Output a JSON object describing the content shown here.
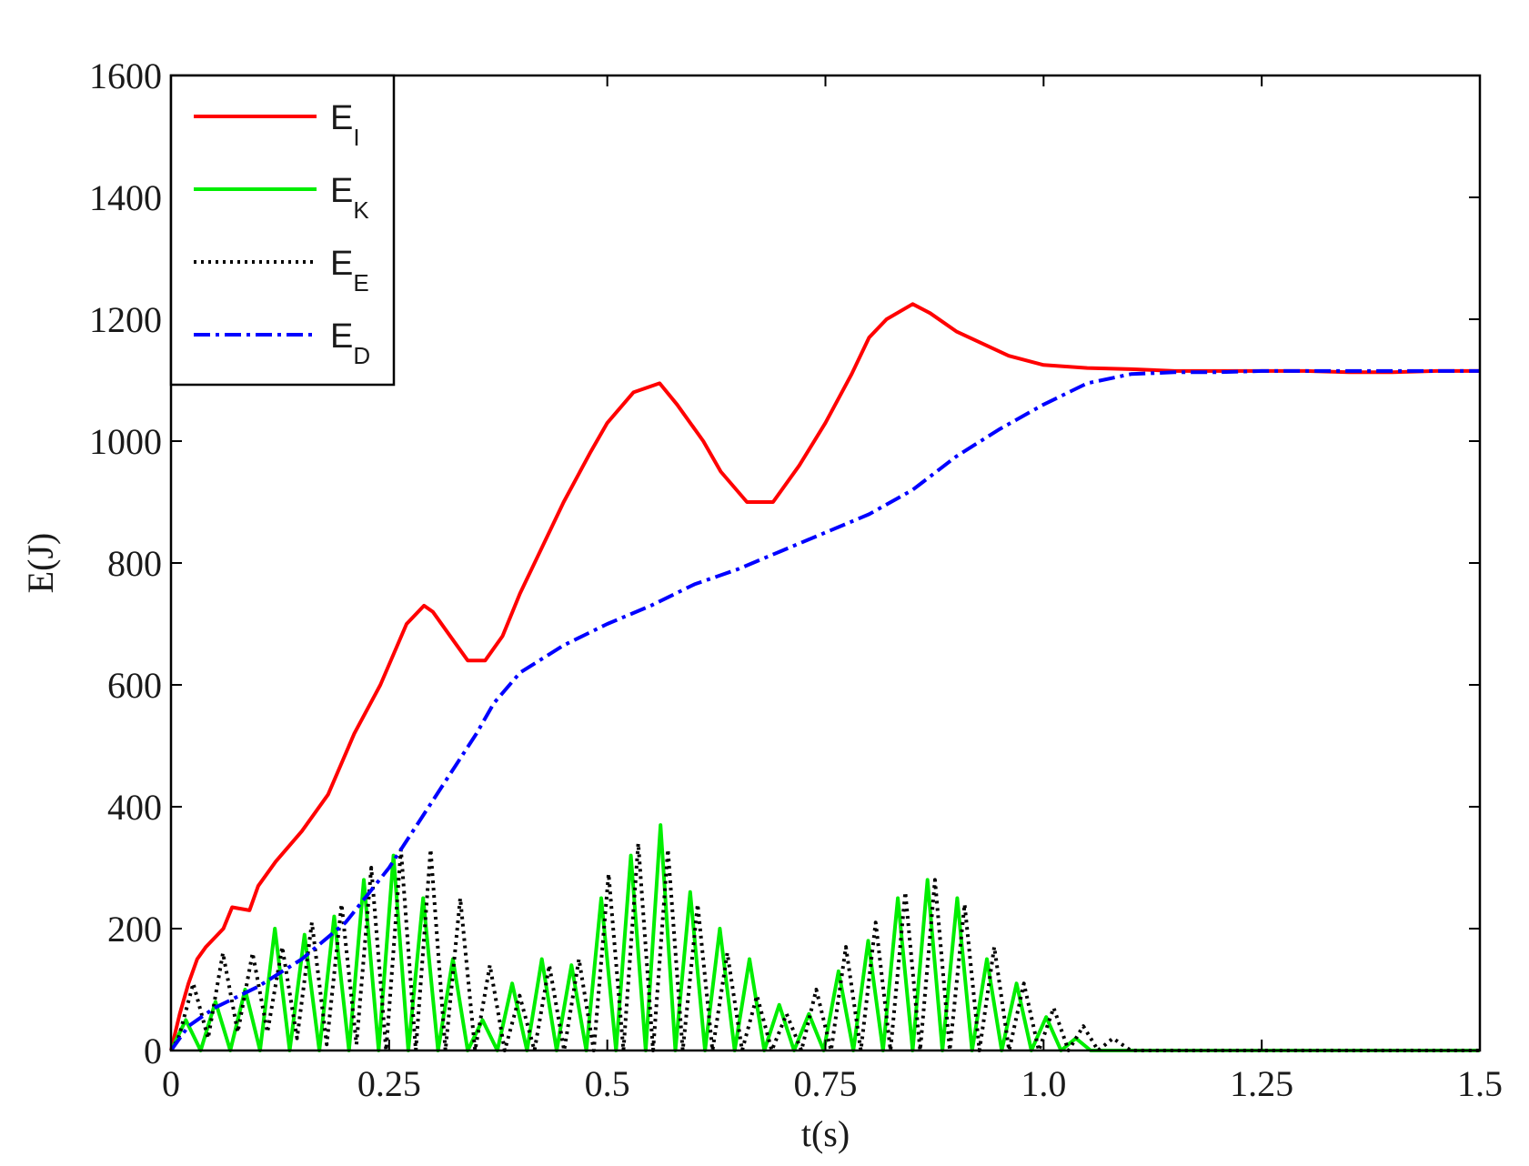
{
  "chart_data": {
    "type": "line",
    "title": "",
    "xlabel": "t(s)",
    "ylabel": "E(J)",
    "xlim": [
      0,
      1.5
    ],
    "ylim": [
      0,
      1600
    ],
    "x_ticks": [
      0,
      0.25,
      0.5,
      0.75,
      1.0,
      1.25,
      1.5
    ],
    "x_tick_labels": [
      "0",
      "0.25",
      "0.5",
      "0.75",
      "1.0",
      "1.25",
      "1.5"
    ],
    "y_ticks": [
      0,
      200,
      400,
      600,
      800,
      1000,
      1200,
      1400,
      1600
    ],
    "y_tick_labels": [
      "0",
      "200",
      "400",
      "600",
      "800",
      "1000",
      "1200",
      "1400",
      "1600"
    ],
    "grid": false,
    "legend_position": "top-left",
    "series": [
      {
        "name": "E_I",
        "label_main": "E",
        "label_sub": "I",
        "color": "#ff0000",
        "style": "solid",
        "x": [
          0,
          0.01,
          0.02,
          0.03,
          0.04,
          0.06,
          0.07,
          0.09,
          0.1,
          0.12,
          0.15,
          0.18,
          0.21,
          0.24,
          0.27,
          0.29,
          0.3,
          0.32,
          0.34,
          0.36,
          0.38,
          0.4,
          0.42,
          0.45,
          0.48,
          0.5,
          0.53,
          0.56,
          0.58,
          0.61,
          0.63,
          0.66,
          0.69,
          0.72,
          0.75,
          0.78,
          0.8,
          0.82,
          0.85,
          0.87,
          0.9,
          0.93,
          0.96,
          1.0,
          1.05,
          1.1,
          1.15,
          1.2,
          1.25,
          1.3,
          1.35,
          1.4,
          1.45,
          1.5
        ],
        "y": [
          0,
          60,
          110,
          150,
          170,
          200,
          235,
          230,
          270,
          310,
          360,
          420,
          520,
          600,
          700,
          730,
          720,
          680,
          640,
          640,
          680,
          750,
          810,
          900,
          980,
          1030,
          1080,
          1095,
          1060,
          1000,
          950,
          900,
          900,
          960,
          1030,
          1110,
          1170,
          1200,
          1225,
          1210,
          1180,
          1160,
          1140,
          1125,
          1120,
          1118,
          1115,
          1115,
          1115,
          1115,
          1113,
          1113,
          1115,
          1115
        ]
      },
      {
        "name": "E_K",
        "label_main": "E",
        "label_sub": "K",
        "color": "#00ee00",
        "style": "solid",
        "x": [
          0,
          0.017,
          0.034,
          0.051,
          0.068,
          0.085,
          0.102,
          0.119,
          0.136,
          0.153,
          0.17,
          0.187,
          0.204,
          0.221,
          0.238,
          0.255,
          0.272,
          0.289,
          0.306,
          0.323,
          0.34,
          0.357,
          0.374,
          0.391,
          0.408,
          0.425,
          0.442,
          0.459,
          0.476,
          0.493,
          0.51,
          0.527,
          0.544,
          0.561,
          0.578,
          0.595,
          0.612,
          0.629,
          0.646,
          0.663,
          0.68,
          0.697,
          0.714,
          0.731,
          0.748,
          0.765,
          0.782,
          0.799,
          0.816,
          0.833,
          0.85,
          0.867,
          0.884,
          0.901,
          0.918,
          0.935,
          0.952,
          0.969,
          0.986,
          1.003,
          1.02,
          1.037,
          1.054,
          1.08,
          1.1,
          1.5
        ],
        "y": [
          0,
          50,
          0,
          80,
          0,
          100,
          0,
          200,
          0,
          190,
          0,
          220,
          0,
          280,
          0,
          320,
          0,
          250,
          0,
          150,
          0,
          50,
          0,
          110,
          0,
          150,
          0,
          140,
          0,
          250,
          0,
          320,
          0,
          370,
          0,
          260,
          0,
          200,
          0,
          150,
          0,
          75,
          0,
          60,
          0,
          130,
          0,
          180,
          0,
          250,
          0,
          280,
          0,
          250,
          0,
          150,
          0,
          110,
          0,
          55,
          0,
          20,
          0,
          0,
          0,
          0
        ]
      },
      {
        "name": "E_E",
        "label_main": "E",
        "label_sub": "E",
        "color": "#000000",
        "style": "dotted",
        "x": [
          0,
          0.0085,
          0.0255,
          0.0425,
          0.0595,
          0.0765,
          0.0935,
          0.1105,
          0.1275,
          0.1445,
          0.1615,
          0.1785,
          0.1955,
          0.2125,
          0.2295,
          0.2465,
          0.2635,
          0.2805,
          0.2975,
          0.3145,
          0.3315,
          0.3485,
          0.3655,
          0.3825,
          0.3995,
          0.4165,
          0.4335,
          0.4505,
          0.4675,
          0.4845,
          0.5015,
          0.5185,
          0.5355,
          0.5525,
          0.5695,
          0.5865,
          0.6035,
          0.6205,
          0.6375,
          0.6545,
          0.6715,
          0.6885,
          0.7055,
          0.7225,
          0.7395,
          0.7565,
          0.7735,
          0.7905,
          0.8075,
          0.8245,
          0.8415,
          0.8585,
          0.8755,
          0.8925,
          0.9095,
          0.9265,
          0.9435,
          0.9605,
          0.9775,
          0.9945,
          1.0115,
          1.0285,
          1.0455,
          1.0625,
          1.0795,
          1.1,
          1.5
        ],
        "y": [
          0,
          20,
          110,
          20,
          160,
          30,
          160,
          30,
          170,
          20,
          210,
          10,
          240,
          10,
          300,
          0,
          330,
          0,
          330,
          0,
          250,
          0,
          140,
          0,
          90,
          0,
          140,
          0,
          150,
          0,
          290,
          0,
          340,
          0,
          330,
          0,
          240,
          0,
          160,
          0,
          90,
          0,
          60,
          0,
          100,
          0,
          170,
          0,
          210,
          0,
          260,
          0,
          280,
          0,
          240,
          0,
          170,
          0,
          110,
          0,
          70,
          0,
          40,
          0,
          20,
          0,
          0
        ]
      },
      {
        "name": "E_D",
        "label_main": "E",
        "label_sub": "D",
        "color": "#0000ff",
        "style": "dashdot",
        "x": [
          0,
          0.02,
          0.05,
          0.1,
          0.15,
          0.2,
          0.25,
          0.3,
          0.35,
          0.37,
          0.4,
          0.45,
          0.5,
          0.55,
          0.6,
          0.65,
          0.7,
          0.75,
          0.8,
          0.85,
          0.9,
          0.95,
          1.0,
          1.05,
          1.1,
          1.15,
          1.2,
          1.25,
          1.3,
          1.35,
          1.4,
          1.45,
          1.5
        ],
        "y": [
          0,
          40,
          70,
          105,
          150,
          210,
          300,
          410,
          520,
          570,
          620,
          665,
          700,
          730,
          765,
          790,
          820,
          850,
          880,
          920,
          975,
          1020,
          1060,
          1095,
          1110,
          1113,
          1113,
          1115,
          1115,
          1115,
          1115,
          1115,
          1115
        ]
      }
    ]
  }
}
